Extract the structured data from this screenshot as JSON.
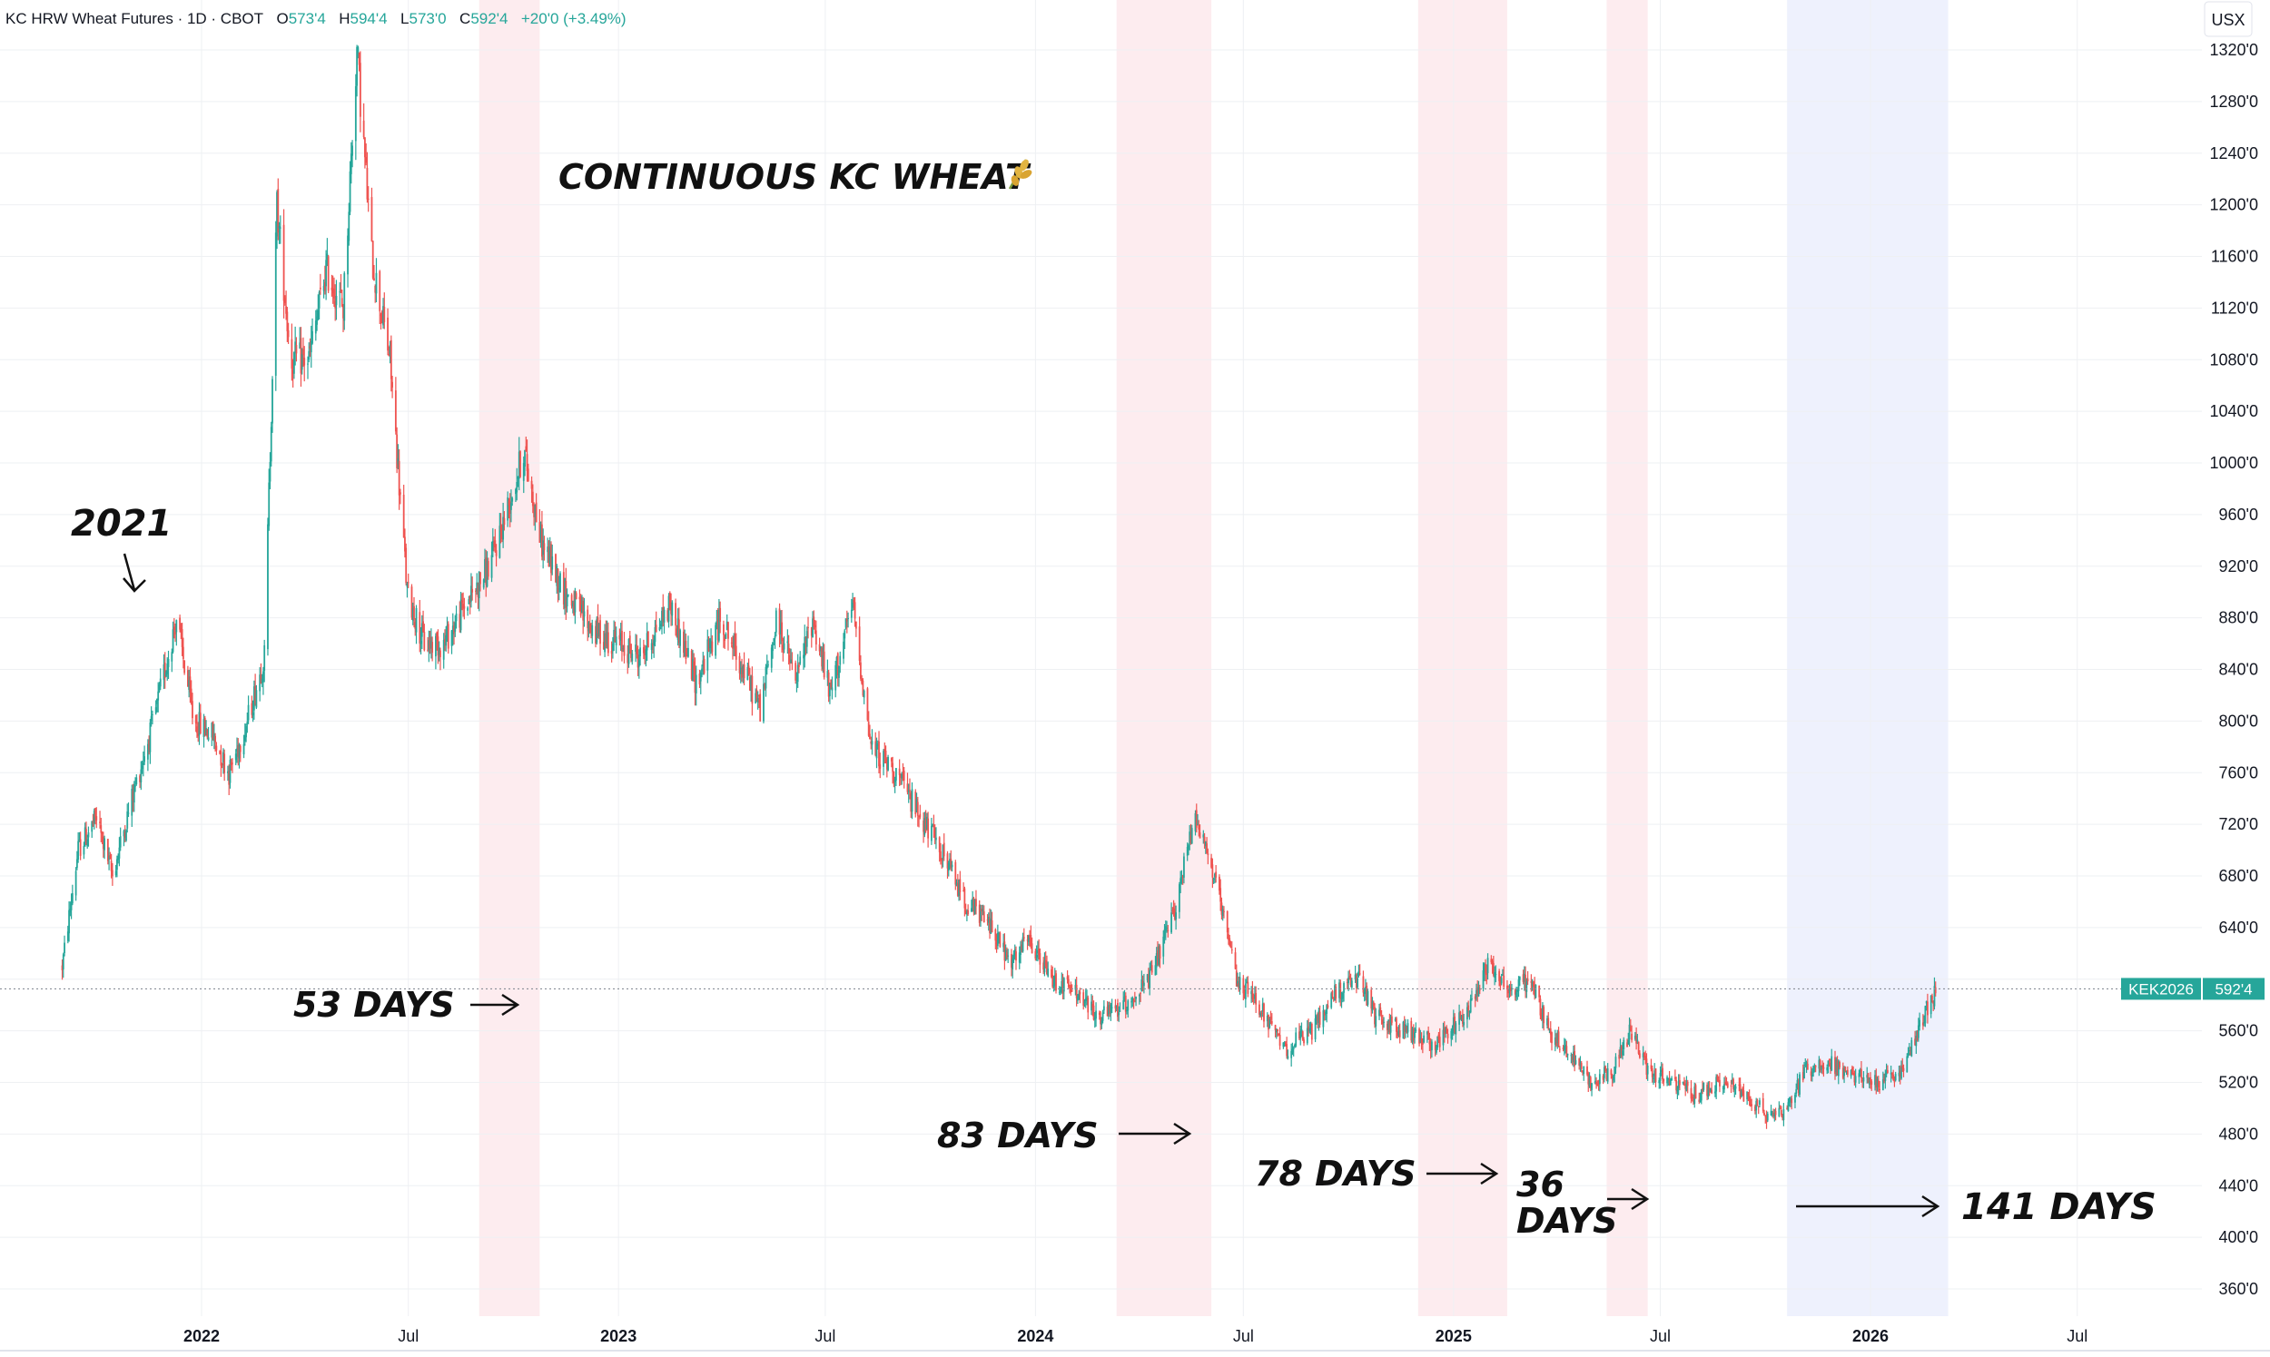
{
  "header": {
    "symbol": "KC HRW Wheat Futures · 1D · CBOT",
    "o_label": "O",
    "o_value": "573'4",
    "h_label": "H",
    "h_value": "594'4",
    "l_label": "L",
    "l_value": "573'0",
    "c_label": "C",
    "c_value": "592'4",
    "change": "+20'0 (+3.49%)"
  },
  "currency": "USX",
  "price_tag": {
    "symbol": "KEK2026",
    "value": "592'4",
    "color": "#26a69a"
  },
  "colors": {
    "up": "#26a69a",
    "down": "#ef5350",
    "red_band": "#fdecef",
    "blue_band": "#eef1fd",
    "grid": "#eef0f3"
  },
  "chart_data": {
    "type": "candlestick",
    "title": "CONTINUOUS KC WHEAT",
    "title_icon": "wheat-icon",
    "y_axis_side": "right",
    "ylim": [
      340,
      1340
    ],
    "y_ticks": [
      "360'0",
      "400'0",
      "440'0",
      "480'0",
      "520'0",
      "560'0",
      "600'0",
      "640'0",
      "680'0",
      "720'0",
      "760'0",
      "800'0",
      "840'0",
      "880'0",
      "920'0",
      "960'0",
      "1000'0",
      "1040'0",
      "1080'0",
      "1120'0",
      "1160'0",
      "1200'0",
      "1240'0",
      "1280'0",
      "1320'0"
    ],
    "y_tick_values": [
      360,
      400,
      440,
      480,
      520,
      560,
      600,
      640,
      680,
      720,
      760,
      800,
      840,
      880,
      920,
      960,
      1000,
      1040,
      1080,
      1120,
      1160,
      1200,
      1240,
      1280,
      1320
    ],
    "x_ticks": [
      {
        "label": "2022",
        "date": "2022-01-01",
        "bold": true
      },
      {
        "label": "Jul",
        "date": "2022-07-01",
        "bold": false
      },
      {
        "label": "2023",
        "date": "2023-01-01",
        "bold": true
      },
      {
        "label": "Jul",
        "date": "2023-07-01",
        "bold": false
      },
      {
        "label": "2024",
        "date": "2024-01-01",
        "bold": true
      },
      {
        "label": "Jul",
        "date": "2024-07-01",
        "bold": false
      },
      {
        "label": "2025",
        "date": "2025-01-01",
        "bold": true
      },
      {
        "label": "Jul",
        "date": "2025-07-01",
        "bold": false
      },
      {
        "label": "2026",
        "date": "2026-01-01",
        "bold": true
      },
      {
        "label": "Jul",
        "date": "2026-07-01",
        "bold": false
      }
    ],
    "x_range": [
      "2021-09-01",
      "2026-10-15"
    ],
    "last_price": 592.5,
    "price_path": [
      [
        "2021-09-01",
        610
      ],
      [
        "2021-09-15",
        700
      ],
      [
        "2021-10-01",
        725
      ],
      [
        "2021-10-15",
        680
      ],
      [
        "2021-11-01",
        740
      ],
      [
        "2021-11-20",
        800
      ],
      [
        "2021-12-10",
        880
      ],
      [
        "2021-12-25",
        800
      ],
      [
        "2022-01-10",
        790
      ],
      [
        "2022-01-25",
        760
      ],
      [
        "2022-02-10",
        800
      ],
      [
        "2022-02-25",
        850
      ],
      [
        "2022-03-08",
        1200
      ],
      [
        "2022-03-20",
        1080
      ],
      [
        "2022-04-05",
        1080
      ],
      [
        "2022-04-20",
        1150
      ],
      [
        "2022-05-05",
        1120
      ],
      [
        "2022-05-17",
        1320
      ],
      [
        "2022-05-30",
        1160
      ],
      [
        "2022-06-15",
        1080
      ],
      [
        "2022-06-30",
        900
      ],
      [
        "2022-07-15",
        860
      ],
      [
        "2022-08-01",
        860
      ],
      [
        "2022-08-20",
        890
      ],
      [
        "2022-09-10",
        920
      ],
      [
        "2022-10-01",
        980
      ],
      [
        "2022-10-10",
        1010
      ],
      [
        "2022-10-25",
        940
      ],
      [
        "2022-11-15",
        900
      ],
      [
        "2022-12-10",
        870
      ],
      [
        "2023-01-01",
        860
      ],
      [
        "2023-01-20",
        850
      ],
      [
        "2023-02-15",
        890
      ],
      [
        "2023-03-10",
        830
      ],
      [
        "2023-04-01",
        880
      ],
      [
        "2023-04-15",
        850
      ],
      [
        "2023-05-05",
        810
      ],
      [
        "2023-05-20",
        880
      ],
      [
        "2023-06-05",
        830
      ],
      [
        "2023-06-20",
        880
      ],
      [
        "2023-07-05",
        820
      ],
      [
        "2023-07-25",
        890
      ],
      [
        "2023-08-10",
        780
      ],
      [
        "2023-09-01",
        760
      ],
      [
        "2023-09-20",
        730
      ],
      [
        "2023-10-10",
        700
      ],
      [
        "2023-11-01",
        660
      ],
      [
        "2023-11-25",
        640
      ],
      [
        "2023-12-10",
        610
      ],
      [
        "2023-12-25",
        630
      ],
      [
        "2024-01-15",
        600
      ],
      [
        "2024-02-05",
        590
      ],
      [
        "2024-02-25",
        570
      ],
      [
        "2024-03-20",
        580
      ],
      [
        "2024-04-10",
        600
      ],
      [
        "2024-05-01",
        650
      ],
      [
        "2024-05-20",
        730
      ],
      [
        "2024-06-05",
        680
      ],
      [
        "2024-06-25",
        600
      ],
      [
        "2024-07-15",
        580
      ],
      [
        "2024-08-05",
        545
      ],
      [
        "2024-08-30",
        560
      ],
      [
        "2024-09-20",
        590
      ],
      [
        "2024-10-10",
        600
      ],
      [
        "2024-10-25",
        570
      ],
      [
        "2024-11-20",
        560
      ],
      [
        "2024-12-15",
        550
      ],
      [
        "2025-01-10",
        570
      ],
      [
        "2025-02-01",
        615
      ],
      [
        "2025-02-20",
        590
      ],
      [
        "2025-03-10",
        600
      ],
      [
        "2025-03-25",
        560
      ],
      [
        "2025-04-15",
        540
      ],
      [
        "2025-05-01",
        520
      ],
      [
        "2025-05-20",
        530
      ],
      [
        "2025-06-05",
        560
      ],
      [
        "2025-06-20",
        530
      ],
      [
        "2025-07-10",
        520
      ],
      [
        "2025-08-01",
        510
      ],
      [
        "2025-08-25",
        520
      ],
      [
        "2025-09-15",
        510
      ],
      [
        "2025-10-01",
        495
      ],
      [
        "2025-10-20",
        500
      ],
      [
        "2025-11-05",
        530
      ],
      [
        "2025-11-25",
        535
      ],
      [
        "2025-12-15",
        525
      ],
      [
        "2026-01-10",
        520
      ],
      [
        "2026-01-30",
        530
      ],
      [
        "2026-02-15",
        570
      ],
      [
        "2026-02-28",
        592.5
      ]
    ],
    "shaded_periods": [
      {
        "start": "2022-09-01",
        "end": "2022-10-24",
        "color": "red",
        "days": 53
      },
      {
        "start": "2024-03-12",
        "end": "2024-06-03",
        "color": "red",
        "days": 83
      },
      {
        "start": "2024-12-01",
        "end": "2025-02-17",
        "color": "red",
        "days": 78
      },
      {
        "start": "2025-05-15",
        "end": "2025-06-20",
        "color": "red",
        "days": 36
      },
      {
        "start": "2025-10-20",
        "end": "2026-03-10",
        "color": "blue",
        "days": 141
      }
    ],
    "annotations": [
      "2021",
      "53 DAYS",
      "83 DAYS",
      "78 DAYS",
      "36",
      "DAYS",
      "141 DAYS"
    ]
  }
}
